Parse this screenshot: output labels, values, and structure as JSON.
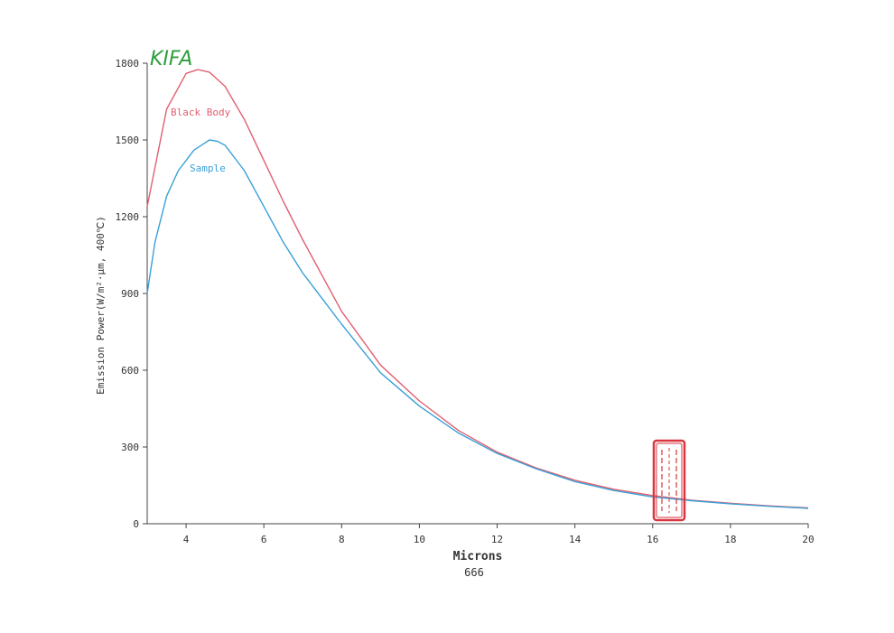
{
  "chart_data": {
    "type": "line",
    "brand": "KIFA",
    "brand_color": "#2e9e3e",
    "xlabel": "Microns",
    "ylabel": "Emission Power(W/m²·μm, 400℃)",
    "footer_code": "666",
    "xlim": [
      3,
      20
    ],
    "ylim": [
      0,
      1800
    ],
    "xticks": [
      4,
      6,
      8,
      10,
      12,
      14,
      16,
      18,
      20
    ],
    "yticks": [
      0,
      300,
      600,
      900,
      1200,
      1500,
      1800
    ],
    "grid": false,
    "series": [
      {
        "name": "Black Body",
        "color": "#e06070",
        "x": [
          3,
          3.5,
          4,
          4.3,
          4.6,
          5,
          5.5,
          6,
          6.5,
          7,
          8,
          9,
          10,
          11,
          12,
          13,
          14,
          15,
          16,
          17,
          18,
          19,
          20
        ],
        "y": [
          1240,
          1620,
          1760,
          1775,
          1765,
          1710,
          1580,
          1420,
          1260,
          1110,
          830,
          620,
          480,
          365,
          280,
          218,
          170,
          135,
          110,
          92,
          80,
          70,
          62
        ]
      },
      {
        "name": "Sample",
        "color": "#3aa0d8",
        "x": [
          3,
          3.2,
          3.5,
          3.8,
          4,
          4.2,
          4.4,
          4.6,
          4.8,
          5,
          5.2,
          5.5,
          6,
          6.5,
          7,
          7.5,
          8,
          9,
          10,
          11,
          12,
          13,
          14,
          15,
          16,
          17,
          18,
          19,
          20
        ],
        "y": [
          900,
          1100,
          1280,
          1380,
          1420,
          1460,
          1480,
          1500,
          1495,
          1480,
          1440,
          1380,
          1240,
          1100,
          980,
          880,
          780,
          590,
          460,
          355,
          275,
          215,
          165,
          130,
          105,
          90,
          78,
          68,
          60
        ]
      }
    ],
    "stamp_color": "#d8353f"
  }
}
